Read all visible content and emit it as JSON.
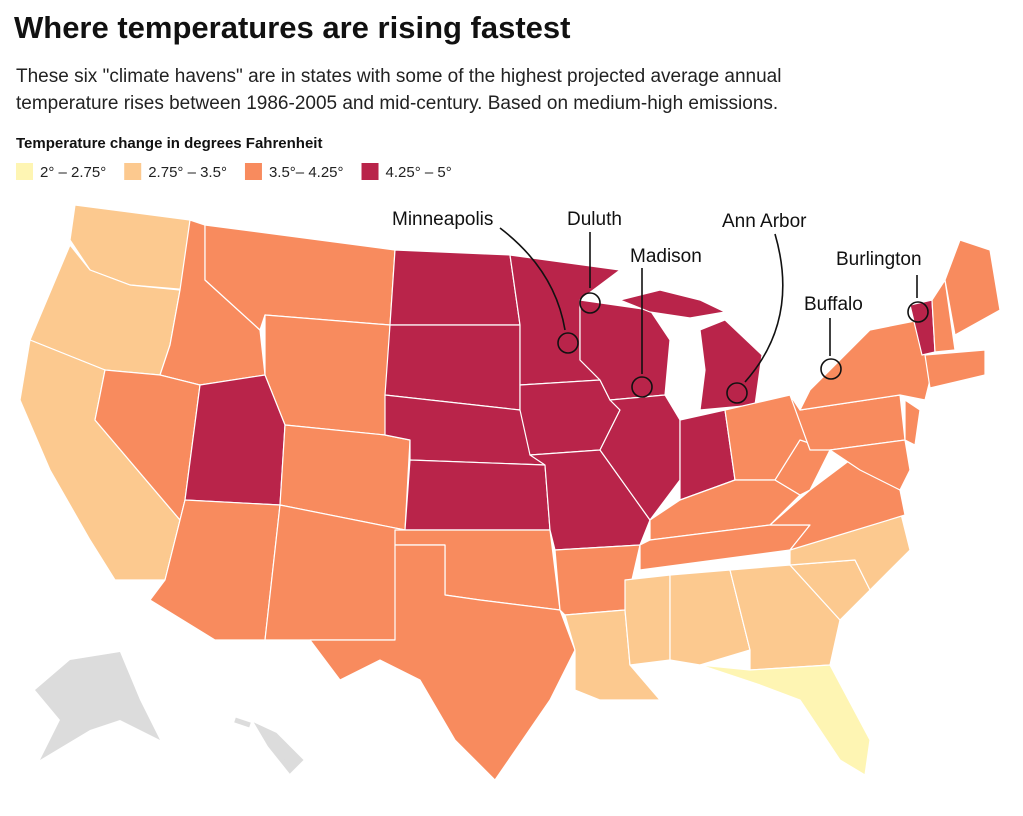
{
  "header": {
    "title": "Where temperatures are rising fastest",
    "subtitle": [
      "These six \"climate havens\" are in states with some of the highest projected average annual",
      "temperature rises between 1986-2005 and mid-century. Based on medium-high emissions."
    ]
  },
  "legend": {
    "title": "Temperature change in degrees Fahrenheit",
    "items": [
      {
        "label": "2° – 2.75°",
        "color": "#fef5b3"
      },
      {
        "label": "2.75° – 3.5°",
        "color": "#fcc98f"
      },
      {
        "label": "3.5°– 4.25°",
        "color": "#f88b5e"
      },
      {
        "label": "4.25° – 5°",
        "color": "#b9244a"
      }
    ]
  },
  "cities": [
    {
      "label": "Minneapolis"
    },
    {
      "label": "Duluth"
    },
    {
      "label": "Madison"
    },
    {
      "label": "Ann Arbor"
    },
    {
      "label": "Buffalo"
    },
    {
      "label": "Burlington"
    }
  ]
}
